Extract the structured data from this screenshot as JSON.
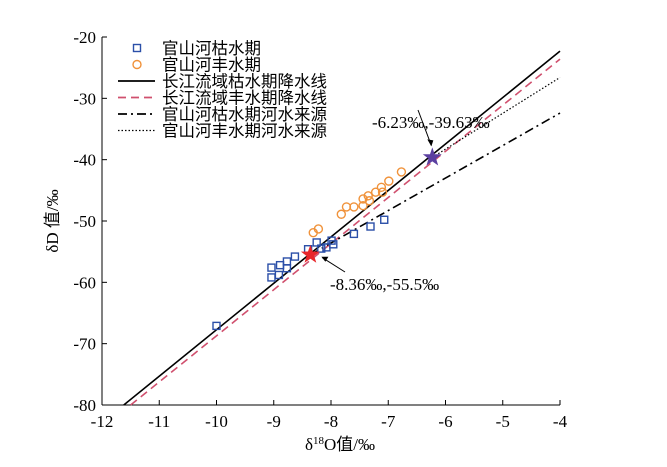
{
  "chart_data": {
    "type": "scatter",
    "xlabel": "δ18O值/‰",
    "xlabel_main": "δ",
    "xlabel_sup": "18",
    "xlabel_rest": "O值/‰",
    "ylabel": "δD 值/‰",
    "xlim": [
      -12,
      -4
    ],
    "ylim": [
      -80,
      -20
    ],
    "xticks": [
      -12,
      -11,
      -10,
      -9,
      -8,
      -7,
      -6,
      -5,
      -4
    ],
    "yticks": [
      -80,
      -70,
      -60,
      -50,
      -40,
      -30,
      -20
    ],
    "legend_position": "top-left",
    "series": [
      {
        "name": "官山河枯水期",
        "type": "scatter",
        "marker": "square",
        "color": "#2b4fa8",
        "points": [
          [
            -10.0,
            -67.1
          ],
          [
            -9.04,
            -59.2
          ],
          [
            -8.91,
            -58.8
          ],
          [
            -9.04,
            -57.6
          ],
          [
            -8.89,
            -57.2
          ],
          [
            -8.77,
            -57.7
          ],
          [
            -8.77,
            -56.6
          ],
          [
            -8.63,
            -55.8
          ],
          [
            -8.4,
            -54.6
          ],
          [
            -8.25,
            -53.5
          ],
          [
            -8.17,
            -54.5
          ],
          [
            -8.08,
            -54.3
          ],
          [
            -7.99,
            -53.2
          ],
          [
            -7.96,
            -53.8
          ],
          [
            -7.6,
            -52.1
          ],
          [
            -7.31,
            -50.9
          ],
          [
            -7.07,
            -49.8
          ]
        ]
      },
      {
        "name": "官山河丰水期",
        "type": "scatter",
        "marker": "circle",
        "color": "#f0923a",
        "points": [
          [
            -8.31,
            -51.9
          ],
          [
            -8.22,
            -51.3
          ],
          [
            -7.82,
            -48.9
          ],
          [
            -7.73,
            -47.7
          ],
          [
            -7.6,
            -47.7
          ],
          [
            -7.44,
            -47.5
          ],
          [
            -7.44,
            -46.4
          ],
          [
            -7.35,
            -45.9
          ],
          [
            -7.33,
            -46.7
          ],
          [
            -7.22,
            -45.3
          ],
          [
            -7.12,
            -44.5
          ],
          [
            -7.1,
            -45.3
          ],
          [
            -6.99,
            -43.5
          ],
          [
            -6.77,
            -42.0
          ]
        ]
      },
      {
        "name": "长江流域枯水期降水线",
        "type": "line",
        "style": "solid",
        "color": "#000000",
        "points": [
          [
            -11.62,
            -80
          ],
          [
            -4,
            -22.3
          ]
        ]
      },
      {
        "name": "长江流域丰水期降水线",
        "type": "line",
        "style": "dashed",
        "color": "#d0506e",
        "points": [
          [
            -11.5,
            -80
          ],
          [
            -4,
            -23.6
          ]
        ]
      },
      {
        "name": "官山河枯水期河水来源",
        "type": "line",
        "style": "dashdot",
        "color": "#000000",
        "points": [
          [
            -8.36,
            -55.5
          ],
          [
            -4,
            -32.4
          ]
        ]
      },
      {
        "name": "官山河丰水期河水来源",
        "type": "line",
        "style": "dotted",
        "color": "#000000",
        "points": [
          [
            -6.23,
            -39.63
          ],
          [
            -4,
            -26.6
          ]
        ]
      }
    ],
    "annotations": [
      {
        "text": "-6.23‰,-39.63‰",
        "point": [
          -6.23,
          -39.63
        ],
        "marker": "star",
        "color": "#5b3fa0"
      },
      {
        "text": "-8.36‰,-55.5‰",
        "point": [
          -8.36,
          -55.5
        ],
        "marker": "star",
        "color": "#e8262a"
      }
    ]
  }
}
